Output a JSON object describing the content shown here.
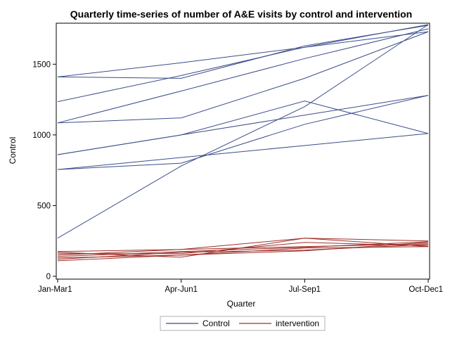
{
  "chart_data": {
    "type": "line",
    "title": "Quarterly time-series of number of A&E visits by control and intervention",
    "xlabel": "Quarter",
    "ylabel": "Control",
    "categories": [
      "Jan-Mar1",
      "Apr-Jun1",
      "Jul-Sep1",
      "Oct-Dec1"
    ],
    "ylim": [
      -20,
      1790
    ],
    "yticks": [
      0,
      500,
      1000,
      1500
    ],
    "grid": false,
    "legend_position": "bottom",
    "legend": [
      {
        "label": "Control",
        "color": "#3b4d8a"
      },
      {
        "label": "intervention",
        "color": "#a0302a"
      }
    ],
    "groups": [
      {
        "name": "Control",
        "color": "#3b4d8a",
        "lines": [
          [
            1410,
            1400,
            1630,
            1775
          ],
          [
            1410,
            1510,
            1620,
            1730
          ],
          [
            1235,
            1420,
            1620,
            1780
          ],
          [
            1085,
            1310,
            1540,
            1750
          ],
          [
            1085,
            1120,
            1400,
            1730
          ],
          [
            860,
            1000,
            1240,
            1010
          ],
          [
            860,
            1000,
            1140,
            1280
          ],
          [
            755,
            800,
            1075,
            1280
          ],
          [
            755,
            840,
            925,
            1010
          ],
          [
            270,
            780,
            1200,
            1780
          ]
        ]
      },
      {
        "name": "intervention",
        "color": "#a0302a",
        "lines": [
          [
            175,
            190,
            270,
            210
          ],
          [
            170,
            135,
            270,
            250
          ],
          [
            160,
            160,
            240,
            215
          ],
          [
            150,
            190,
            210,
            230
          ],
          [
            140,
            175,
            205,
            245
          ],
          [
            130,
            150,
            200,
            210
          ],
          [
            120,
            170,
            185,
            225
          ],
          [
            110,
            150,
            180,
            240
          ]
        ]
      }
    ]
  }
}
